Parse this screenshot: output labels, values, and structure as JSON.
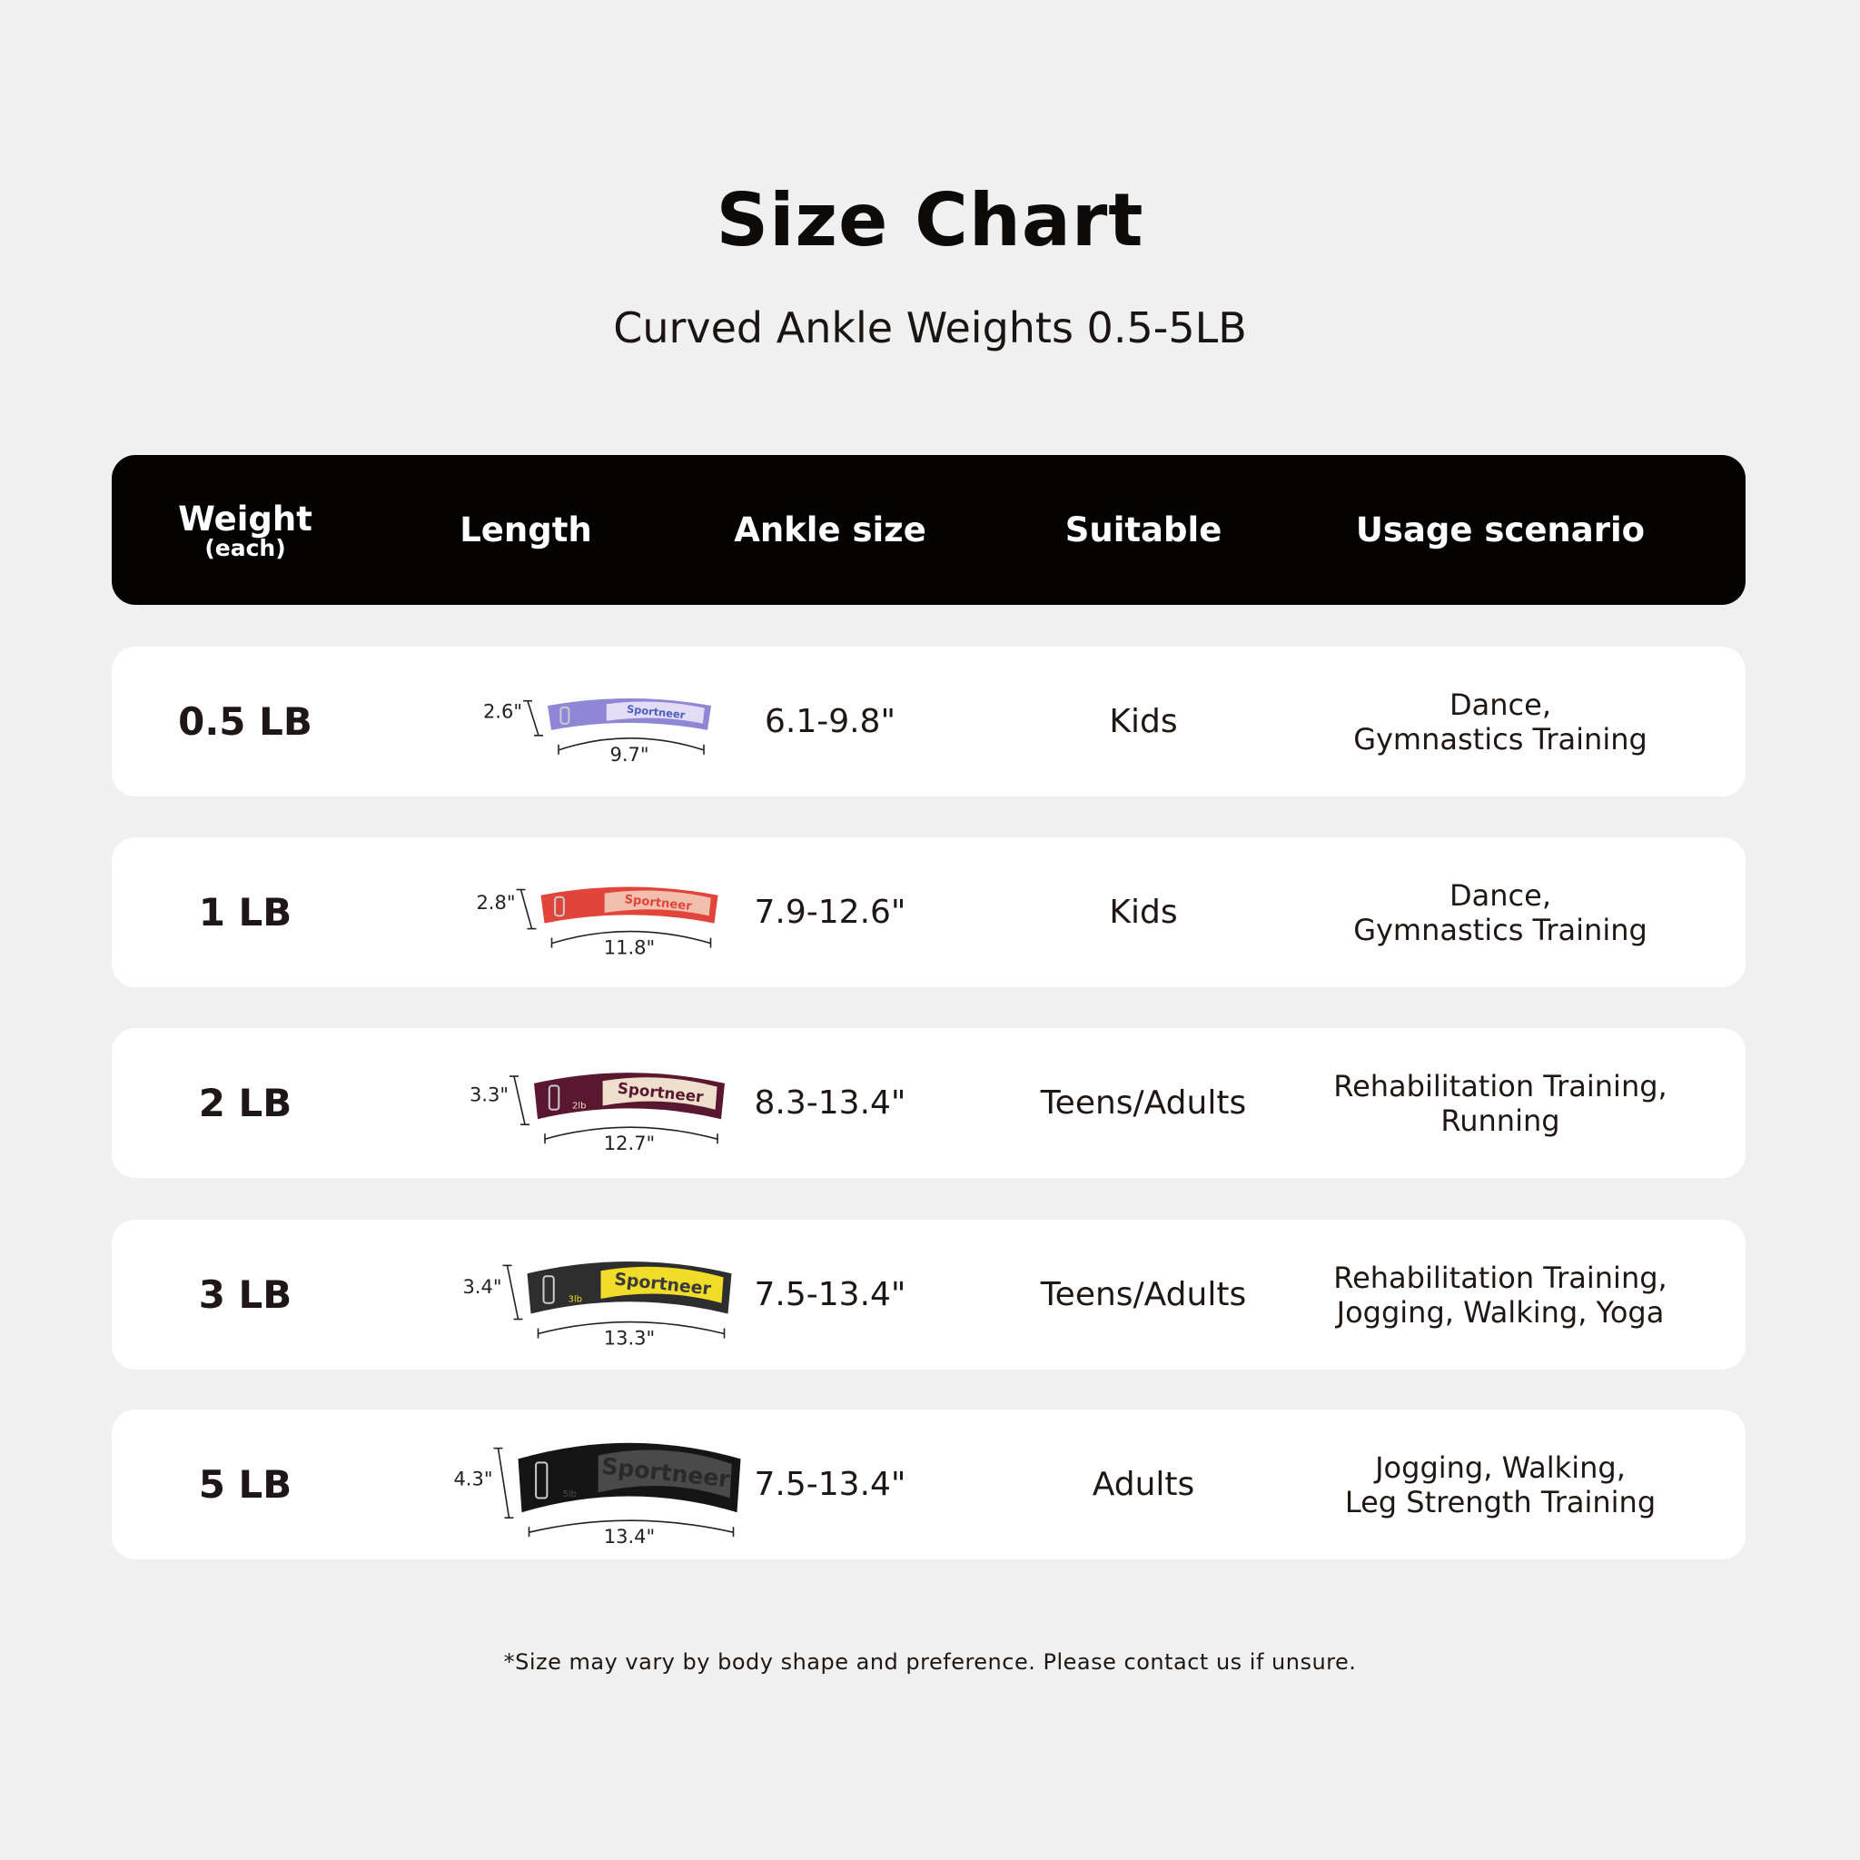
{
  "title": "Size Chart",
  "subtitle": "Curved Ankle Weights 0.5-5LB",
  "header": {
    "weight": "Weight",
    "weight_sub": "(each)",
    "length": "Length",
    "ankle": "Ankle size",
    "suitable": "Suitable",
    "usage": "Usage scenario"
  },
  "rows": [
    {
      "weight": "0.5 LB",
      "height": "2.6\"",
      "length": "9.7\"",
      "ankle": "6.1-9.8\"",
      "suitable": "Kids",
      "usage1": "Dance,",
      "usage2": "Gymnastics Training",
      "brand": "Sportneer",
      "band_color": "#8f86d6",
      "patch_color": "#e4dcf4",
      "text_color": "#4b5fc0",
      "lb_mark": ""
    },
    {
      "weight": "1 LB",
      "height": "2.8\"",
      "length": "11.8\"",
      "ankle": "7.9-12.6\"",
      "suitable": "Kids",
      "usage1": "Dance,",
      "usage2": "Gymnastics Training",
      "brand": "Sportneer",
      "band_color": "#e0443a",
      "patch_color": "#f2bfae",
      "text_color": "#e0443a",
      "lb_mark": ""
    },
    {
      "weight": "2 LB",
      "height": "3.3\"",
      "length": "12.7\"",
      "ankle": "8.3-13.4\"",
      "suitable": "Teens/Adults",
      "usage1": "Rehabilitation Training,",
      "usage2": "Running",
      "brand": "Sportneer",
      "band_color": "#5a1730",
      "patch_color": "#eedfcc",
      "text_color": "#5a1730",
      "lb_mark": "2lb"
    },
    {
      "weight": "3 LB",
      "height": "3.4\"",
      "length": "13.3\"",
      "ankle": "7.5-13.4\"",
      "suitable": "Teens/Adults",
      "usage1": "Rehabilitation Training,",
      "usage2": "Jogging, Walking, Yoga",
      "brand": "Sportneer",
      "band_color": "#2e2e2e",
      "patch_color": "#f2dc2a",
      "text_color": "#3a3a3a",
      "lb_mark": "3lb"
    },
    {
      "weight": "5 LB",
      "height": "4.3\"",
      "length": "13.4\"",
      "ankle": "7.5-13.4\"",
      "suitable": "Adults",
      "usage1": "Jogging, Walking,",
      "usage2": "Leg Strength Training",
      "brand": "Sportneer",
      "band_color": "#151515",
      "patch_color": "#4a4a4a",
      "text_color": "#2a2a2a",
      "lb_mark": "5lb"
    }
  ],
  "footnote": "*Size may vary by body shape and preference. Please contact us if unsure."
}
